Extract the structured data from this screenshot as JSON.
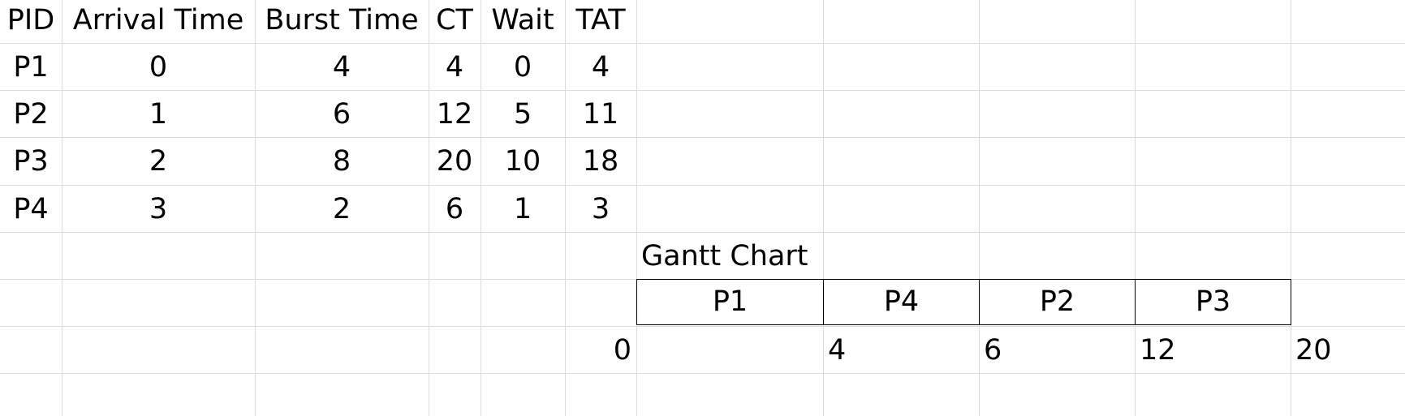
{
  "table": {
    "headers": [
      "PID",
      "Arrival Time",
      "Burst Time",
      "CT",
      "Wait",
      "TAT"
    ],
    "rows": [
      [
        "P1",
        "0",
        "4",
        "4",
        "0",
        "4"
      ],
      [
        "P2",
        "1",
        "6",
        "12",
        "5",
        "11"
      ],
      [
        "P3",
        "2",
        "8",
        "20",
        "10",
        "18"
      ],
      [
        "P4",
        "3",
        "2",
        "6",
        "1",
        "3"
      ]
    ]
  },
  "gantt": {
    "title": "Gantt Chart",
    "processes": [
      "P1",
      "P4",
      "P2",
      "P3"
    ],
    "times": [
      "0",
      "4",
      "6",
      "12",
      "20"
    ]
  }
}
